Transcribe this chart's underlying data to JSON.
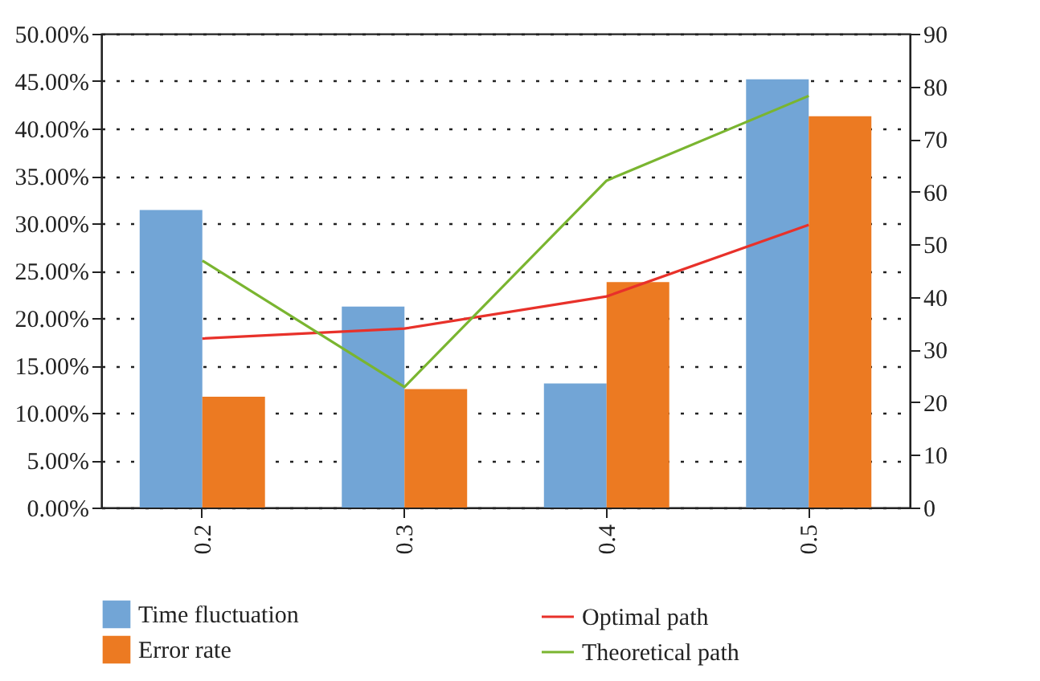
{
  "chart_data": {
    "type": "bar",
    "categories": [
      "0.2",
      "0.3",
      "0.4",
      "0.5"
    ],
    "series": [
      {
        "name": "Time fluctuation",
        "color": "#72a5d6",
        "values": [
          31.4,
          21.2,
          13.1,
          45.2
        ]
      },
      {
        "name": "Error rate",
        "color": "#ec7a22",
        "values": [
          11.7,
          12.5,
          23.8,
          41.3
        ]
      },
      {
        "name": "Optimal path",
        "type": "line",
        "axis": "y2",
        "color": "#e8312a",
        "values": [
          32.1,
          34.0,
          40.1,
          53.7
        ]
      },
      {
        "name": "Theoretical path",
        "type": "line",
        "axis": "y2",
        "color": "#7ab530",
        "values": [
          46.9,
          22.9,
          62.1,
          78.2
        ]
      }
    ],
    "ylim": [
      0,
      50
    ],
    "yticks": [
      {
        "value": 0,
        "label": "0.00%"
      },
      {
        "value": 5,
        "label": "5.00%"
      },
      {
        "value": 10,
        "label": "10.00%"
      },
      {
        "value": 15,
        "label": "15.00%"
      },
      {
        "value": 20,
        "label": "20.00%"
      },
      {
        "value": 25,
        "label": "25.00%"
      },
      {
        "value": 30,
        "label": "30.00%"
      },
      {
        "value": 35,
        "label": "35.00%"
      },
      {
        "value": 40,
        "label": "40.00%"
      },
      {
        "value": 45,
        "label": "45.00%"
      },
      {
        "value": 50,
        "label": "50.00%"
      }
    ],
    "y2lim": [
      0,
      90
    ],
    "y2ticks": [
      0,
      10,
      20,
      30,
      40,
      50,
      60,
      70,
      80,
      90
    ],
    "grid": "y",
    "legend": "bottom"
  }
}
